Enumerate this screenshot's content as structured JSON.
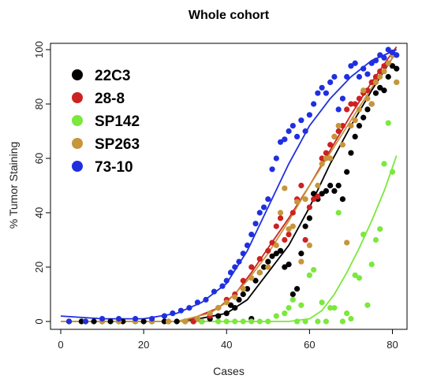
{
  "chart_data": {
    "type": "scatter",
    "title": "Whole cohort",
    "xlabel": "Cases",
    "ylabel": "% Tumor Staining",
    "xlim": [
      0,
      82
    ],
    "ylim": [
      0,
      100
    ],
    "xticks": [
      0,
      20,
      40,
      60,
      80
    ],
    "yticks": [
      0,
      20,
      40,
      60,
      80,
      100
    ],
    "grid": false,
    "legend_position": "top-left",
    "series": [
      {
        "name": "22C3",
        "color": "#000000",
        "points": [
          [
            2,
            0
          ],
          [
            5,
            0
          ],
          [
            8,
            0
          ],
          [
            10,
            0
          ],
          [
            12,
            0
          ],
          [
            15,
            0
          ],
          [
            18,
            0
          ],
          [
            20,
            0
          ],
          [
            22,
            0
          ],
          [
            25,
            0
          ],
          [
            28,
            0
          ],
          [
            30,
            0
          ],
          [
            32,
            0
          ],
          [
            34,
            0
          ],
          [
            36,
            1
          ],
          [
            38,
            2
          ],
          [
            40,
            3
          ],
          [
            41,
            6
          ],
          [
            42,
            5
          ],
          [
            43,
            8
          ],
          [
            44,
            10
          ],
          [
            45,
            12
          ],
          [
            46,
            1
          ],
          [
            47,
            15
          ],
          [
            48,
            18
          ],
          [
            49,
            20
          ],
          [
            50,
            22
          ],
          [
            51,
            24
          ],
          [
            52,
            25
          ],
          [
            53,
            26
          ],
          [
            54,
            20
          ],
          [
            55,
            21
          ],
          [
            56,
            10
          ],
          [
            57,
            12
          ],
          [
            58,
            25
          ],
          [
            59,
            35
          ],
          [
            60,
            38
          ],
          [
            61,
            47
          ],
          [
            62,
            45
          ],
          [
            63,
            47
          ],
          [
            64,
            48
          ],
          [
            65,
            50
          ],
          [
            66,
            48
          ],
          [
            67,
            50
          ],
          [
            68,
            45
          ],
          [
            69,
            55
          ],
          [
            70,
            62
          ],
          [
            71,
            68
          ],
          [
            72,
            72
          ],
          [
            73,
            75
          ],
          [
            74,
            78
          ],
          [
            75,
            80
          ],
          [
            76,
            84
          ],
          [
            77,
            86
          ],
          [
            78,
            85
          ],
          [
            79,
            90
          ],
          [
            80,
            94
          ],
          [
            81,
            93
          ]
        ],
        "fit": [
          [
            0,
            0
          ],
          [
            30,
            0
          ],
          [
            40,
            3
          ],
          [
            45,
            8
          ],
          [
            50,
            18
          ],
          [
            55,
            28
          ],
          [
            60,
            42
          ],
          [
            65,
            58
          ],
          [
            70,
            72
          ],
          [
            75,
            85
          ],
          [
            80,
            97
          ],
          [
            81,
            99
          ]
        ]
      },
      {
        "name": "28-8",
        "color": "#cc2222",
        "points": [
          [
            2,
            0
          ],
          [
            6,
            0
          ],
          [
            10,
            0
          ],
          [
            14,
            0
          ],
          [
            18,
            0
          ],
          [
            22,
            0
          ],
          [
            26,
            0
          ],
          [
            30,
            0
          ],
          [
            32,
            0
          ],
          [
            34,
            0
          ],
          [
            36,
            2
          ],
          [
            38,
            5
          ],
          [
            40,
            8
          ],
          [
            42,
            10
          ],
          [
            44,
            15
          ],
          [
            46,
            20
          ],
          [
            48,
            23
          ],
          [
            50,
            26
          ],
          [
            51,
            29
          ],
          [
            52,
            35
          ],
          [
            53,
            38
          ],
          [
            54,
            30
          ],
          [
            55,
            32
          ],
          [
            56,
            40
          ],
          [
            57,
            45
          ],
          [
            58,
            50
          ],
          [
            59,
            30
          ],
          [
            60,
            42
          ],
          [
            61,
            45
          ],
          [
            62,
            46
          ],
          [
            63,
            60
          ],
          [
            64,
            62
          ],
          [
            65,
            65
          ],
          [
            66,
            68
          ],
          [
            67,
            70
          ],
          [
            68,
            72
          ],
          [
            69,
            78
          ],
          [
            70,
            80
          ],
          [
            71,
            80
          ],
          [
            72,
            82
          ],
          [
            73,
            84
          ],
          [
            74,
            85
          ],
          [
            75,
            88
          ],
          [
            76,
            90
          ],
          [
            77,
            92
          ],
          [
            78,
            94
          ],
          [
            79,
            95
          ],
          [
            80,
            98
          ]
        ],
        "fit": [
          [
            0,
            0
          ],
          [
            30,
            0
          ],
          [
            38,
            5
          ],
          [
            42,
            10
          ],
          [
            46,
            18
          ],
          [
            50,
            27
          ],
          [
            55,
            38
          ],
          [
            60,
            50
          ],
          [
            65,
            63
          ],
          [
            70,
            76
          ],
          [
            75,
            88
          ],
          [
            80,
            99
          ],
          [
            81,
            101
          ]
        ]
      },
      {
        "name": "SP142",
        "color": "#7be83c",
        "points": [
          [
            2,
            0
          ],
          [
            6,
            0
          ],
          [
            10,
            0
          ],
          [
            14,
            0
          ],
          [
            18,
            0
          ],
          [
            22,
            0
          ],
          [
            26,
            0
          ],
          [
            30,
            0
          ],
          [
            34,
            0
          ],
          [
            38,
            0
          ],
          [
            40,
            0
          ],
          [
            42,
            0
          ],
          [
            44,
            0
          ],
          [
            46,
            0
          ],
          [
            48,
            0
          ],
          [
            50,
            0
          ],
          [
            52,
            2
          ],
          [
            54,
            3
          ],
          [
            55,
            5
          ],
          [
            56,
            8
          ],
          [
            57,
            0
          ],
          [
            58,
            6
          ],
          [
            59,
            0
          ],
          [
            60,
            17
          ],
          [
            61,
            19
          ],
          [
            62,
            0
          ],
          [
            63,
            7
          ],
          [
            64,
            0
          ],
          [
            65,
            5
          ],
          [
            66,
            5
          ],
          [
            67,
            40
          ],
          [
            68,
            0
          ],
          [
            69,
            3
          ],
          [
            70,
            1
          ],
          [
            71,
            17
          ],
          [
            72,
            16
          ],
          [
            73,
            32
          ],
          [
            74,
            6
          ],
          [
            75,
            21
          ],
          [
            76,
            30
          ],
          [
            77,
            34
          ],
          [
            78,
            58
          ],
          [
            79,
            73
          ],
          [
            80,
            55
          ],
          [
            81,
            88
          ]
        ],
        "fit": [
          [
            0,
            0
          ],
          [
            50,
            0
          ],
          [
            55,
            0
          ],
          [
            60,
            1
          ],
          [
            63,
            4
          ],
          [
            66,
            10
          ],
          [
            69,
            18
          ],
          [
            72,
            27
          ],
          [
            75,
            37
          ],
          [
            78,
            48
          ],
          [
            81,
            61
          ]
        ]
      },
      {
        "name": "SP263",
        "color": "#c7953b",
        "points": [
          [
            2,
            0
          ],
          [
            6,
            0
          ],
          [
            10,
            0
          ],
          [
            14,
            0
          ],
          [
            18,
            0
          ],
          [
            22,
            0
          ],
          [
            26,
            0
          ],
          [
            30,
            0
          ],
          [
            33,
            1
          ],
          [
            36,
            3
          ],
          [
            38,
            5
          ],
          [
            40,
            7
          ],
          [
            42,
            9
          ],
          [
            44,
            12
          ],
          [
            46,
            16
          ],
          [
            48,
            18
          ],
          [
            50,
            20
          ],
          [
            52,
            28
          ],
          [
            53,
            40
          ],
          [
            54,
            49
          ],
          [
            55,
            34
          ],
          [
            56,
            35
          ],
          [
            57,
            44
          ],
          [
            58,
            22
          ],
          [
            59,
            45
          ],
          [
            60,
            28
          ],
          [
            62,
            50
          ],
          [
            63,
            58
          ],
          [
            64,
            60
          ],
          [
            65,
            60
          ],
          [
            66,
            68
          ],
          [
            67,
            72
          ],
          [
            68,
            65
          ],
          [
            69,
            29
          ],
          [
            70,
            72
          ],
          [
            71,
            74
          ],
          [
            72,
            78
          ],
          [
            73,
            85
          ],
          [
            74,
            82
          ],
          [
            75,
            80
          ],
          [
            76,
            88
          ],
          [
            77,
            90
          ],
          [
            78,
            92
          ],
          [
            79,
            95
          ],
          [
            80,
            98
          ],
          [
            81,
            88
          ]
        ],
        "fit": [
          [
            0,
            0
          ],
          [
            28,
            0
          ],
          [
            36,
            3
          ],
          [
            40,
            7
          ],
          [
            45,
            15
          ],
          [
            50,
            25
          ],
          [
            55,
            37
          ],
          [
            60,
            50
          ],
          [
            65,
            62
          ],
          [
            70,
            74
          ],
          [
            75,
            86
          ],
          [
            80,
            97
          ],
          [
            81,
            99
          ]
        ]
      },
      {
        "name": "73-10",
        "color": "#1f2fe0",
        "points": [
          [
            2,
            0
          ],
          [
            6,
            0
          ],
          [
            10,
            1
          ],
          [
            14,
            1
          ],
          [
            18,
            1
          ],
          [
            22,
            1
          ],
          [
            25,
            2
          ],
          [
            27,
            3
          ],
          [
            29,
            4
          ],
          [
            31,
            5
          ],
          [
            33,
            7
          ],
          [
            35,
            8
          ],
          [
            37,
            11
          ],
          [
            39,
            13
          ],
          [
            40,
            15
          ],
          [
            41,
            18
          ],
          [
            42,
            20
          ],
          [
            43,
            22
          ],
          [
            44,
            25
          ],
          [
            45,
            28
          ],
          [
            46,
            32
          ],
          [
            47,
            36
          ],
          [
            48,
            40
          ],
          [
            49,
            42
          ],
          [
            50,
            45
          ],
          [
            51,
            56
          ],
          [
            52,
            60
          ],
          [
            53,
            66
          ],
          [
            54,
            67
          ],
          [
            55,
            70
          ],
          [
            56,
            72
          ],
          [
            57,
            68
          ],
          [
            58,
            74
          ],
          [
            59,
            70
          ],
          [
            60,
            76
          ],
          [
            61,
            80
          ],
          [
            62,
            84
          ],
          [
            63,
            86
          ],
          [
            64,
            84
          ],
          [
            65,
            88
          ],
          [
            66,
            90
          ],
          [
            67,
            78
          ],
          [
            68,
            82
          ],
          [
            69,
            90
          ],
          [
            70,
            94
          ],
          [
            71,
            95
          ],
          [
            72,
            90
          ],
          [
            73,
            93
          ],
          [
            74,
            91
          ],
          [
            75,
            95
          ],
          [
            76,
            96
          ],
          [
            77,
            98
          ],
          [
            78,
            97
          ],
          [
            79,
            100
          ],
          [
            80,
            99
          ],
          [
            81,
            98
          ]
        ],
        "fit": [
          [
            0,
            2
          ],
          [
            10,
            1
          ],
          [
            20,
            1
          ],
          [
            28,
            3
          ],
          [
            34,
            7
          ],
          [
            40,
            14
          ],
          [
            45,
            26
          ],
          [
            50,
            42
          ],
          [
            55,
            58
          ],
          [
            60,
            72
          ],
          [
            65,
            82
          ],
          [
            70,
            90
          ],
          [
            75,
            96
          ],
          [
            81,
            100
          ]
        ]
      }
    ]
  }
}
